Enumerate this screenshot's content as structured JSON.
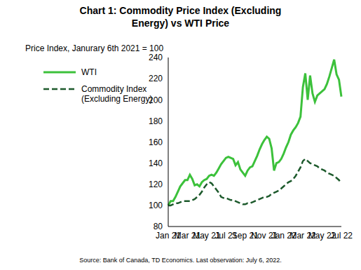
{
  "chart_data": {
    "type": "line",
    "title": "Chart 1: Commodity Price Index (Excluding Energy) vs WTI Price",
    "ylabel": "Price Index, Janurary 6th 2021 = 100",
    "annotations": [
      "Source: Bank of Canada, TD Economics.  Last observation: July 6, 2022."
    ],
    "categories": [
      "Jan 21",
      null,
      null,
      null,
      null,
      null,
      null,
      null,
      "Mar 21",
      null,
      null,
      null,
      null,
      null,
      null,
      null,
      "May 21",
      null,
      null,
      null,
      null,
      null,
      null,
      null,
      "Jul 21",
      null,
      null,
      null,
      null,
      null,
      null,
      null,
      "Sep 21",
      null,
      null,
      null,
      null,
      null,
      null,
      null,
      "Nov 21",
      null,
      null,
      null,
      null,
      null,
      null,
      null,
      "Jan 22",
      null,
      null,
      null,
      null,
      null,
      null,
      null,
      "Mar 22",
      null,
      null,
      null,
      null,
      null,
      null,
      null,
      "May 22",
      null,
      null,
      null,
      null,
      null,
      null,
      null,
      "Jul 22"
    ],
    "series": [
      {
        "name": "WTI",
        "color": "#3cc13b",
        "line_style": "solid",
        "values": [
          100,
          104,
          104,
          108,
          113,
          118,
          121,
          124,
          124,
          129,
          125,
          119,
          120,
          118,
          122,
          124,
          125,
          128,
          129,
          128,
          131,
          135,
          139,
          142,
          145,
          146,
          145,
          144,
          138,
          141,
          134,
          131,
          128,
          133,
          136,
          137,
          142,
          147,
          153,
          158,
          162,
          165,
          163,
          154,
          133,
          140,
          141,
          144,
          149,
          155,
          160,
          167,
          171,
          174,
          178,
          184,
          212,
          225,
          200,
          223,
          206,
          198,
          204,
          206,
          208,
          210,
          215,
          222,
          230,
          238,
          224,
          219,
          203
        ]
      },
      {
        "name": "Commodity Index (Excluding Energy)",
        "color": "#1d5a2c",
        "line_style": "dashed",
        "values": [
          100,
          100,
          101,
          102,
          102,
          103,
          104,
          104,
          104,
          104,
          105,
          106,
          108,
          110,
          113,
          117,
          120,
          122,
          121,
          118,
          115,
          112,
          108,
          107,
          107,
          106,
          105,
          105,
          104,
          103,
          102,
          101,
          101,
          102,
          102,
          103,
          104,
          105,
          106,
          107,
          108,
          108,
          109,
          111,
          112,
          113,
          114,
          116,
          118,
          120,
          122,
          123,
          125,
          128,
          132,
          136,
          142,
          144,
          142,
          140,
          139,
          138,
          137,
          135,
          134,
          133,
          131,
          130,
          129,
          128,
          126,
          124,
          121
        ]
      }
    ],
    "ylim": [
      80,
      240
    ],
    "yticks": [
      80,
      100,
      120,
      140,
      160,
      180,
      200,
      220,
      240
    ],
    "grid": false,
    "legend": "upper left"
  }
}
